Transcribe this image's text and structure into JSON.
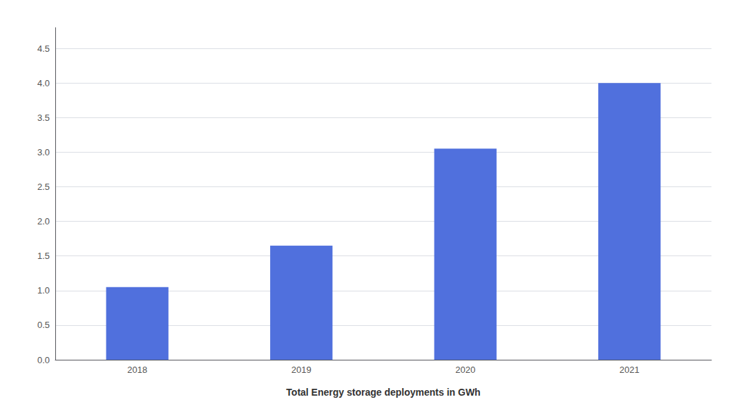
{
  "chart_data": {
    "type": "bar",
    "xlabel": "Total Energy storage deployments in GWh",
    "categories": [
      "2018",
      "2019",
      "2020",
      "2021"
    ],
    "values": [
      1.05,
      1.65,
      3.05,
      4.0
    ],
    "ylim": [
      0,
      4.8
    ],
    "yticks": [
      {
        "value": 0.0,
        "label": "0.0"
      },
      0.5,
      {
        "value": 1.0,
        "label": "1.0"
      },
      1.5,
      {
        "value": 2.0,
        "label": "2.0"
      },
      2.5,
      {
        "value": 3.0,
        "label": "3.0"
      },
      3.5,
      {
        "value": 4.0,
        "label": "4.0"
      },
      4.5
    ],
    "grid": true
  }
}
